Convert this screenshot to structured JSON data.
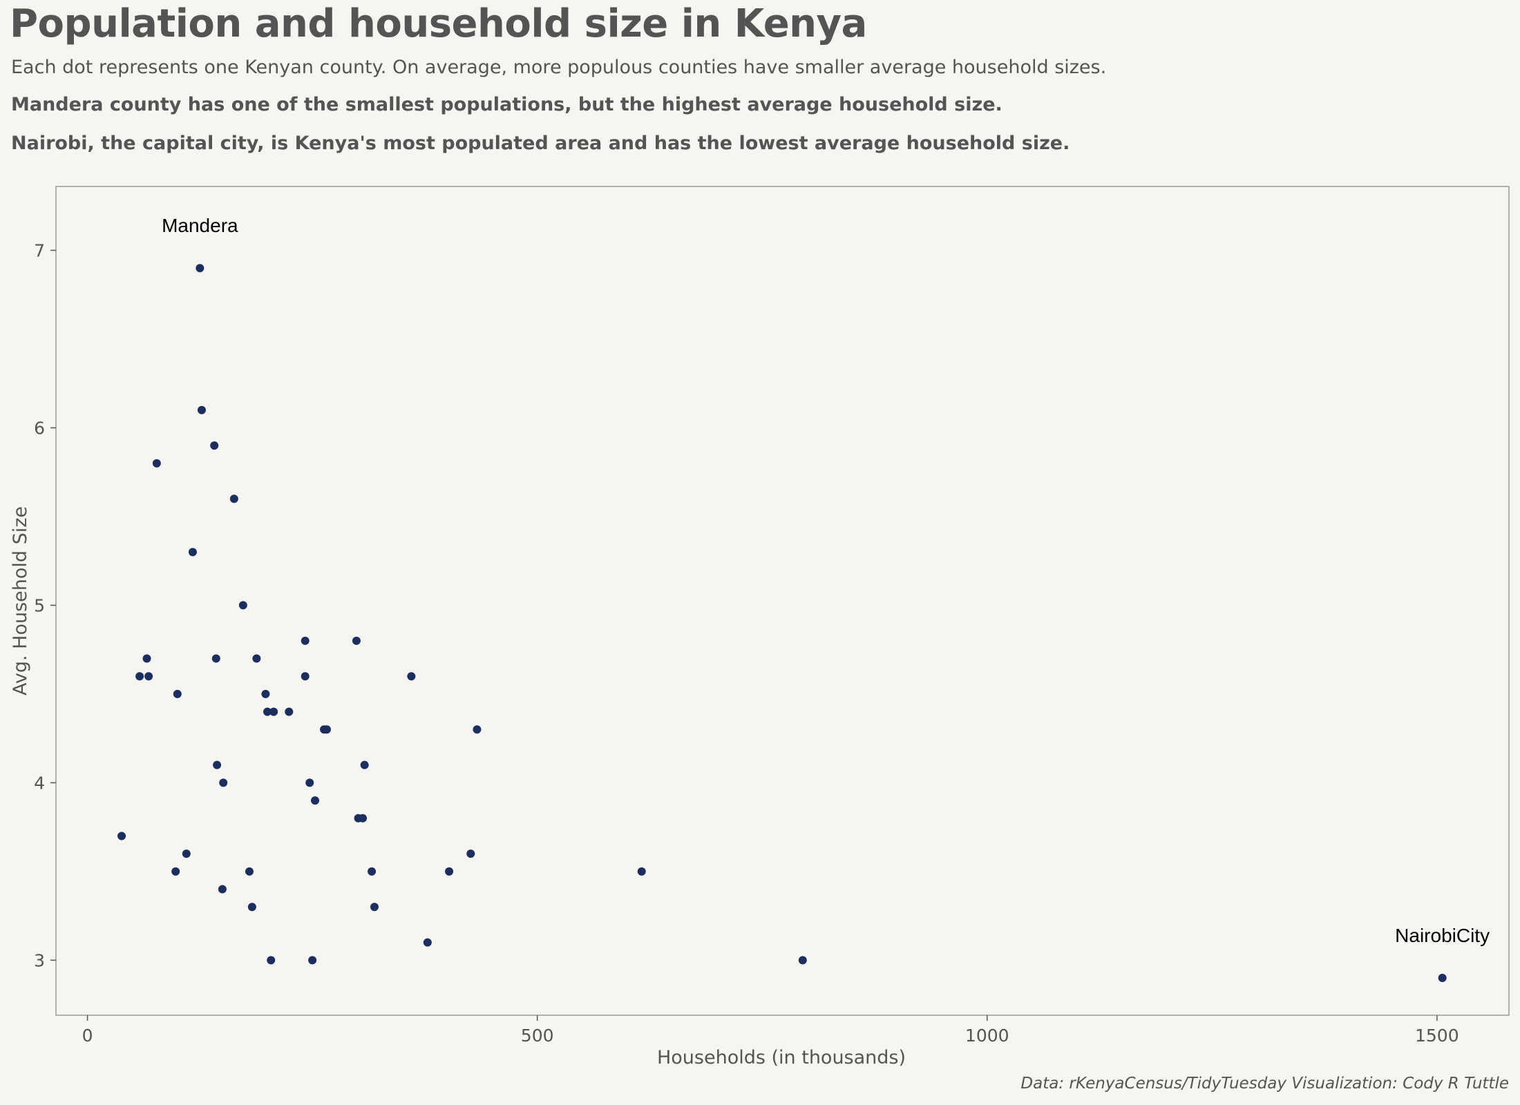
{
  "chart_data": {
    "type": "scatter",
    "title": "Population and household size in Kenya",
    "subtitle": "Each dot represents one Kenyan county. On average, more populous counties have smaller average household sizes.",
    "notes": [
      "Mandera county has one of the smallest populations, but the highest average household size.",
      "Nairobi, the capital city, is Kenya's most populated area and has the lowest average household size."
    ],
    "caption": "Data: rKenyaCensus/TidyTuesday Visualization: Cody R Tuttle",
    "xlabel": "Households (in thousands)",
    "ylabel": "Avg. Household Size",
    "xlim": [
      -35,
      1580
    ],
    "ylim": [
      2.69,
      7.36
    ],
    "xticks": [
      0,
      500,
      1000,
      1500
    ],
    "yticks": [
      3,
      4,
      5,
      6,
      7
    ],
    "grid": false,
    "point_color": "#1b2e5e",
    "points": [
      {
        "x": 125,
        "y": 6.9,
        "label": "Mandera"
      },
      {
        "x": 127,
        "y": 6.1
      },
      {
        "x": 141,
        "y": 5.9
      },
      {
        "x": 77,
        "y": 5.8
      },
      {
        "x": 163,
        "y": 5.6
      },
      {
        "x": 117,
        "y": 5.3
      },
      {
        "x": 173,
        "y": 5.0
      },
      {
        "x": 242,
        "y": 4.8
      },
      {
        "x": 299,
        "y": 4.8
      },
      {
        "x": 66,
        "y": 4.7
      },
      {
        "x": 143,
        "y": 4.7
      },
      {
        "x": 188,
        "y": 4.7
      },
      {
        "x": 58,
        "y": 4.6
      },
      {
        "x": 68,
        "y": 4.6
      },
      {
        "x": 242,
        "y": 4.6
      },
      {
        "x": 360,
        "y": 4.6
      },
      {
        "x": 100,
        "y": 4.5
      },
      {
        "x": 198,
        "y": 4.5
      },
      {
        "x": 200,
        "y": 4.4
      },
      {
        "x": 207,
        "y": 4.4
      },
      {
        "x": 224,
        "y": 4.4
      },
      {
        "x": 263,
        "y": 4.3
      },
      {
        "x": 266,
        "y": 4.3
      },
      {
        "x": 433,
        "y": 4.3
      },
      {
        "x": 144,
        "y": 4.1
      },
      {
        "x": 308,
        "y": 4.1
      },
      {
        "x": 151,
        "y": 4.0
      },
      {
        "x": 247,
        "y": 4.0
      },
      {
        "x": 253,
        "y": 3.9
      },
      {
        "x": 301,
        "y": 3.8
      },
      {
        "x": 306,
        "y": 3.8
      },
      {
        "x": 38,
        "y": 3.7
      },
      {
        "x": 110,
        "y": 3.6
      },
      {
        "x": 426,
        "y": 3.6
      },
      {
        "x": 98,
        "y": 3.5
      },
      {
        "x": 180,
        "y": 3.5
      },
      {
        "x": 316,
        "y": 3.5
      },
      {
        "x": 402,
        "y": 3.5
      },
      {
        "x": 616,
        "y": 3.5
      },
      {
        "x": 150,
        "y": 3.4
      },
      {
        "x": 183,
        "y": 3.3
      },
      {
        "x": 319,
        "y": 3.3
      },
      {
        "x": 378,
        "y": 3.1
      },
      {
        "x": 204,
        "y": 3.0
      },
      {
        "x": 250,
        "y": 3.0
      },
      {
        "x": 795,
        "y": 3.0
      },
      {
        "x": 1506,
        "y": 2.9,
        "label": "NairobiCity"
      }
    ]
  }
}
